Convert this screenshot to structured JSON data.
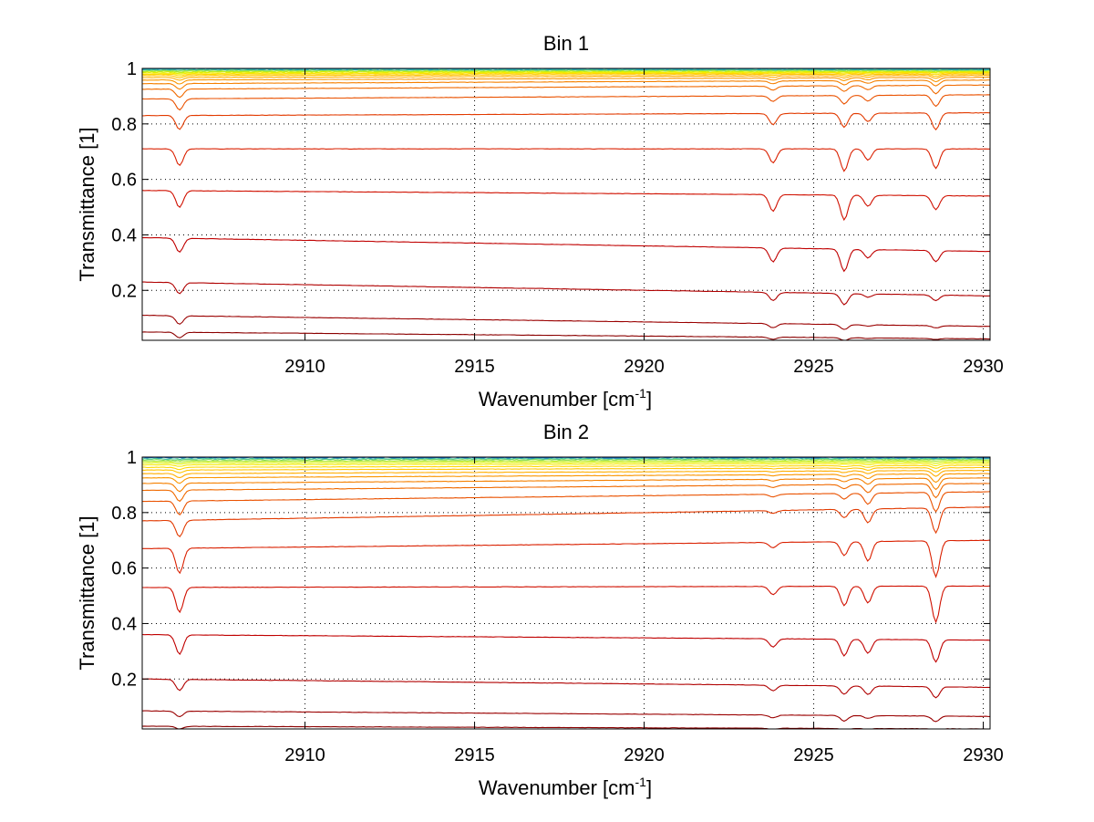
{
  "figure": {
    "background": "#ffffff"
  },
  "chart_data": [
    {
      "type": "line",
      "title": "Bin 1",
      "xlabel_main": "Wavenumber [cm",
      "xlabel_sup": "-1",
      "xlabel_tail": "]",
      "ylabel": "Transmittance [1]",
      "xlim": [
        2905.2,
        2930.2
      ],
      "ylim": [
        0.02,
        1.0
      ],
      "xticks": [
        2910,
        2915,
        2920,
        2925,
        2930
      ],
      "xtick_labels": [
        "2910",
        "2915",
        "2920",
        "2925",
        "2930"
      ],
      "yticks": [
        0.2,
        0.4,
        0.6,
        0.8,
        1.0
      ],
      "ytick_labels": [
        "0.2",
        "0.4",
        "0.6",
        "0.8",
        "1"
      ],
      "grid": "dotted",
      "absorption_lines_cm1": [
        2906.3,
        2923.8,
        2925.9,
        2926.6,
        2928.6
      ],
      "series_count": 20,
      "series": [
        {
          "baseline": [
            0.05,
            0.025
          ],
          "dips": [
            0.02,
            0.008,
            0.01,
            0.002,
            0.004
          ],
          "color": "#8b0000"
        },
        {
          "baseline": [
            0.11,
            0.07
          ],
          "dips": [
            0.03,
            0.015,
            0.018,
            0.005,
            0.008
          ],
          "color": "#9a0000"
        },
        {
          "baseline": [
            0.23,
            0.18
          ],
          "dips": [
            0.04,
            0.03,
            0.04,
            0.012,
            0.02
          ],
          "color": "#b00000"
        },
        {
          "baseline": [
            0.39,
            0.34
          ],
          "dips": [
            0.05,
            0.05,
            0.08,
            0.03,
            0.04
          ],
          "color": "#c00000"
        },
        {
          "baseline": [
            0.56,
            0.54
          ],
          "dips": [
            0.06,
            0.06,
            0.09,
            0.04,
            0.05
          ],
          "color": "#d01000"
        },
        {
          "baseline": [
            0.71,
            0.71
          ],
          "dips": [
            0.06,
            0.05,
            0.08,
            0.04,
            0.07
          ],
          "color": "#da2000"
        },
        {
          "baseline": [
            0.83,
            0.84
          ],
          "dips": [
            0.05,
            0.04,
            0.05,
            0.03,
            0.06
          ],
          "color": "#e23a00"
        },
        {
          "baseline": [
            0.89,
            0.905
          ],
          "dips": [
            0.04,
            0.02,
            0.03,
            0.02,
            0.04
          ],
          "color": "#ea5200"
        },
        {
          "baseline": [
            0.925,
            0.94
          ],
          "dips": [
            0.03,
            0.015,
            0.02,
            0.015,
            0.03
          ],
          "color": "#f06a00"
        },
        {
          "baseline": [
            0.945,
            0.958
          ],
          "dips": [
            0.02,
            0.01,
            0.015,
            0.01,
            0.02
          ],
          "color": "#f58000"
        },
        {
          "baseline": [
            0.958,
            0.968
          ],
          "dips": [
            0.015,
            0.008,
            0.01,
            0.008,
            0.015
          ],
          "color": "#fa9600"
        },
        {
          "baseline": [
            0.967,
            0.975
          ],
          "dips": [
            0.01,
            0.006,
            0.008,
            0.006,
            0.01
          ],
          "color": "#ffae00"
        },
        {
          "baseline": [
            0.974,
            0.98
          ],
          "dips": [
            0.008,
            0.004,
            0.006,
            0.004,
            0.008
          ],
          "color": "#ffc400"
        },
        {
          "baseline": [
            0.979,
            0.984
          ],
          "dips": [
            0.006,
            0.003,
            0.004,
            0.003,
            0.006
          ],
          "color": "#ffd800"
        },
        {
          "baseline": [
            0.983,
            0.987
          ],
          "dips": [
            0.004,
            0.002,
            0.003,
            0.002,
            0.004
          ],
          "color": "#f5ea00"
        },
        {
          "baseline": [
            0.987,
            0.99
          ],
          "dips": [
            0.003,
            0.002,
            0.002,
            0.002,
            0.003
          ],
          "color": "#d8f000"
        },
        {
          "baseline": [
            0.99,
            0.992
          ],
          "dips": [
            0.002,
            0.001,
            0.001,
            0.001,
            0.002
          ],
          "color": "#b0e830"
        },
        {
          "baseline": [
            0.993,
            0.994
          ],
          "dips": [
            0.001,
            0.001,
            0.001,
            0.001,
            0.001
          ],
          "color": "#80d860"
        },
        {
          "baseline": [
            0.996,
            0.996
          ],
          "dips": [
            0.0,
            0.0,
            0.0,
            0.0,
            0.0
          ],
          "color": "#40c0a0"
        },
        {
          "baseline": [
            0.998,
            0.998
          ],
          "dips": [
            0.0,
            0.0,
            0.0,
            0.0,
            0.0
          ],
          "color": "#20a8c8"
        }
      ]
    },
    {
      "type": "line",
      "title": "Bin 2",
      "xlabel_main": "Wavenumber [cm",
      "xlabel_sup": "-1",
      "xlabel_tail": "]",
      "ylabel": "Transmittance [1]",
      "xlim": [
        2905.2,
        2930.2
      ],
      "ylim": [
        0.02,
        1.0
      ],
      "xticks": [
        2910,
        2915,
        2920,
        2925,
        2930
      ],
      "xtick_labels": [
        "2910",
        "2915",
        "2920",
        "2925",
        "2930"
      ],
      "yticks": [
        0.2,
        0.4,
        0.6,
        0.8,
        1.0
      ],
      "ytick_labels": [
        "0.2",
        "0.4",
        "0.6",
        "0.8",
        "1"
      ],
      "grid": "dotted",
      "absorption_lines_cm1": [
        2906.3,
        2923.8,
        2925.9,
        2926.6,
        2928.6
      ],
      "series_count": 20,
      "series": [
        {
          "baseline": [
            0.03,
            0.02
          ],
          "dips": [
            0.01,
            0.005,
            0.008,
            0.004,
            0.008
          ],
          "color": "#8b0000"
        },
        {
          "baseline": [
            0.085,
            0.065
          ],
          "dips": [
            0.02,
            0.01,
            0.02,
            0.01,
            0.02
          ],
          "color": "#9a0000"
        },
        {
          "baseline": [
            0.2,
            0.17
          ],
          "dips": [
            0.04,
            0.02,
            0.03,
            0.03,
            0.04
          ],
          "color": "#b00000"
        },
        {
          "baseline": [
            0.36,
            0.34
          ],
          "dips": [
            0.07,
            0.03,
            0.06,
            0.05,
            0.08
          ],
          "color": "#c00000"
        },
        {
          "baseline": [
            0.53,
            0.535
          ],
          "dips": [
            0.09,
            0.03,
            0.07,
            0.06,
            0.13
          ],
          "color": "#d01000"
        },
        {
          "baseline": [
            0.67,
            0.7
          ],
          "dips": [
            0.09,
            0.02,
            0.05,
            0.07,
            0.13
          ],
          "color": "#da2000"
        },
        {
          "baseline": [
            0.77,
            0.82
          ],
          "dips": [
            0.06,
            0.01,
            0.03,
            0.05,
            0.09
          ],
          "color": "#e23a00"
        },
        {
          "baseline": [
            0.84,
            0.875
          ],
          "dips": [
            0.05,
            0.01,
            0.02,
            0.04,
            0.07
          ],
          "color": "#ea5200"
        },
        {
          "baseline": [
            0.88,
            0.905
          ],
          "dips": [
            0.04,
            0.008,
            0.015,
            0.03,
            0.05
          ],
          "color": "#f06a00"
        },
        {
          "baseline": [
            0.905,
            0.925
          ],
          "dips": [
            0.03,
            0.006,
            0.01,
            0.02,
            0.04
          ],
          "color": "#f58000"
        },
        {
          "baseline": [
            0.925,
            0.94
          ],
          "dips": [
            0.02,
            0.004,
            0.008,
            0.015,
            0.03
          ],
          "color": "#fa9600"
        },
        {
          "baseline": [
            0.94,
            0.952
          ],
          "dips": [
            0.015,
            0.003,
            0.006,
            0.01,
            0.02
          ],
          "color": "#ffae00"
        },
        {
          "baseline": [
            0.953,
            0.962
          ],
          "dips": [
            0.01,
            0.002,
            0.004,
            0.008,
            0.015
          ],
          "color": "#ffc400"
        },
        {
          "baseline": [
            0.963,
            0.97
          ],
          "dips": [
            0.008,
            0.002,
            0.003,
            0.006,
            0.01
          ],
          "color": "#ffd800"
        },
        {
          "baseline": [
            0.972,
            0.977
          ],
          "dips": [
            0.006,
            0.001,
            0.002,
            0.004,
            0.008
          ],
          "color": "#f5ea00"
        },
        {
          "baseline": [
            0.979,
            0.983
          ],
          "dips": [
            0.004,
            0.001,
            0.002,
            0.003,
            0.005
          ],
          "color": "#d8f000"
        },
        {
          "baseline": [
            0.985,
            0.988
          ],
          "dips": [
            0.003,
            0.001,
            0.001,
            0.002,
            0.003
          ],
          "color": "#b0e830"
        },
        {
          "baseline": [
            0.99,
            0.992
          ],
          "dips": [
            0.002,
            0.0,
            0.001,
            0.001,
            0.002
          ],
          "color": "#80d860"
        },
        {
          "baseline": [
            0.994,
            0.995
          ],
          "dips": [
            0.001,
            0.0,
            0.0,
            0.0,
            0.001
          ],
          "color": "#40c0a0"
        },
        {
          "baseline": [
            0.998,
            0.998
          ],
          "dips": [
            0.0,
            0.0,
            0.0,
            0.0,
            0.0
          ],
          "color": "#1a6fd0"
        }
      ]
    }
  ]
}
